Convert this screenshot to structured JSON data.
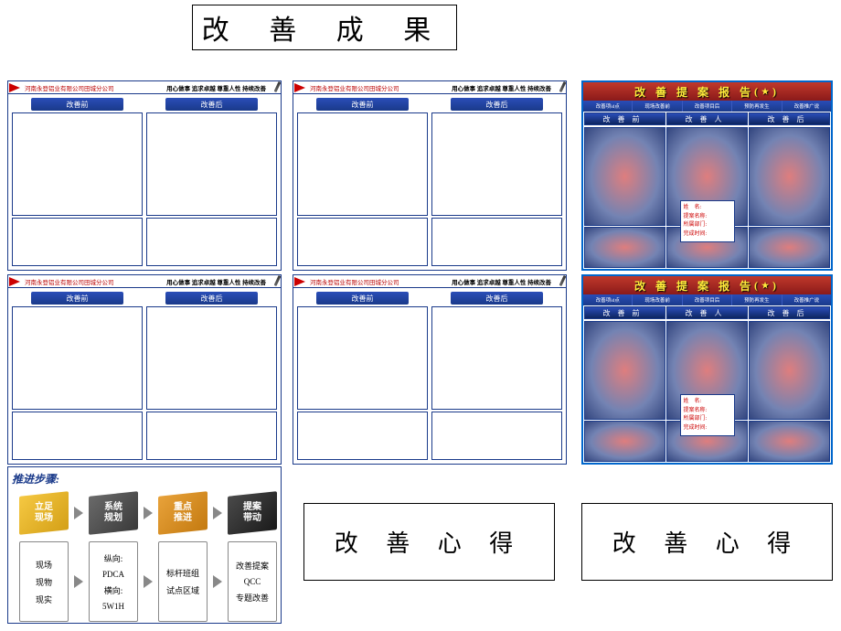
{
  "page_title": "改 善 成 果",
  "form": {
    "company": "河南永登铝业有限公司田城分公司",
    "slogan": "用心做事 追求卓越 尊重人性 持续改善",
    "before_label": "改善前",
    "after_label": "改善后"
  },
  "report": {
    "title": "改 善 提 案 报 告",
    "title_suffix_open": "(",
    "title_suffix_close": ")",
    "star": "★",
    "tabs": [
      "改善项id点",
      "现场改善前",
      "改善项目后",
      "预防再发生",
      "改善推广说"
    ],
    "cols": [
      "改善前",
      "改善人",
      "改善后"
    ],
    "info_labels": {
      "name": "姓　名:",
      "proposal": "提案名称:",
      "dept": "所属部门:",
      "date": "完成时间:"
    },
    "colors": {
      "title_bg": "#8b1a1a",
      "title_text": "#ffeb3b",
      "tab_bg": "#1a3a8a",
      "border": "#0066cc"
    }
  },
  "steps": {
    "title": "推进步骤:",
    "cubes": [
      {
        "label": "立足\n现场",
        "style": "yellow"
      },
      {
        "label": "系统\n规划",
        "style": "gray"
      },
      {
        "label": "重点\n推进",
        "style": "orange"
      },
      {
        "label": "提案\n带动",
        "style": "dark"
      }
    ],
    "boxes": [
      [
        "现场",
        "现物",
        "现实"
      ],
      [
        "纵向:",
        "PDCA",
        "横向:",
        "5W1H"
      ],
      [
        "标杆班组",
        "试点区域"
      ],
      [
        "改善提案",
        "QCC",
        "专题改善"
      ]
    ]
  },
  "reflection_label": "改 善 心 得"
}
